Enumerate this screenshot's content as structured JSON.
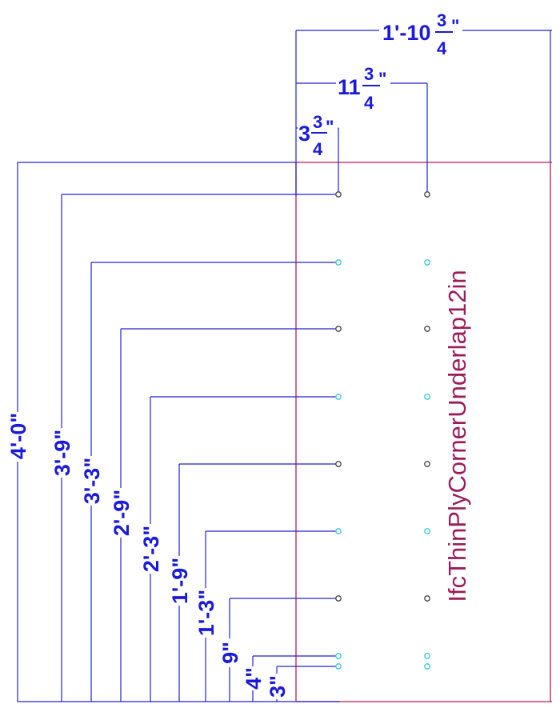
{
  "colors": {
    "dimension": "#2222d6",
    "outline": "#c0185a",
    "label": "#9c1c5a",
    "hole_dark": "#444444",
    "hole_cyan": "#33cccc"
  },
  "panel_label": "IfcThinPlyCornerUnderlap12in",
  "horizontal_dims": [
    {
      "whole": "3",
      "num": "3",
      "den": "4",
      "suffix": "\""
    },
    {
      "whole": "11",
      "num": "3",
      "den": "4",
      "suffix": "\""
    },
    {
      "whole": "1'-10",
      "num": "3",
      "den": "4",
      "suffix": "\""
    }
  ],
  "vertical_dims": [
    {
      "text": "4'-0\""
    },
    {
      "text": "3'-9\""
    },
    {
      "text": "3'-3\""
    },
    {
      "text": "2'-9\""
    },
    {
      "text": "2'-3\""
    },
    {
      "text": "1'-9\""
    },
    {
      "text": "1'-3\""
    },
    {
      "text": "9\""
    },
    {
      "text": "4\""
    },
    {
      "text": "3\""
    }
  ],
  "hole_rows": [
    {
      "color": "dark"
    },
    {
      "color": "cyan"
    },
    {
      "color": "dark"
    },
    {
      "color": "cyan"
    },
    {
      "color": "dark"
    },
    {
      "color": "cyan"
    },
    {
      "color": "dark"
    },
    {
      "color": "cyan"
    },
    {
      "color": "cyan"
    }
  ]
}
